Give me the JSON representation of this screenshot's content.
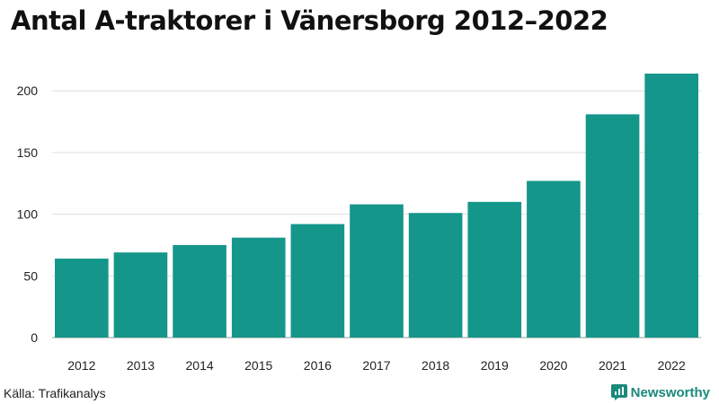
{
  "chart_data": {
    "type": "bar",
    "title": "Antal A-traktorer i Vänersborg 2012–2022",
    "categories": [
      "2012",
      "2013",
      "2014",
      "2015",
      "2016",
      "2017",
      "2018",
      "2019",
      "2020",
      "2021",
      "2022"
    ],
    "values": [
      64,
      69,
      75,
      81,
      92,
      108,
      101,
      110,
      127,
      181,
      214
    ],
    "xlabel": "",
    "ylabel": "",
    "ylim": [
      0,
      230
    ],
    "yticks": [
      0,
      50,
      100,
      150,
      200
    ],
    "grid": true,
    "bar_color": "#15968a"
  },
  "source": "Källa: Trafikanalys",
  "brand": {
    "name": "Newsworthy",
    "color": "#1a8a7a"
  }
}
